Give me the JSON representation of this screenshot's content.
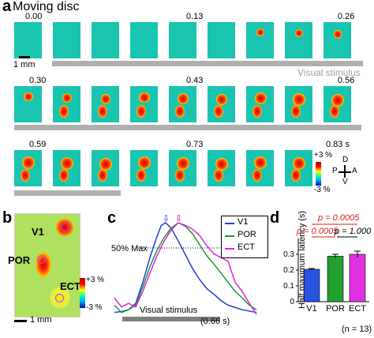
{
  "panel_a": {
    "letter": "a",
    "title": "Moving disc",
    "scale_label": "1 mm",
    "stimulus_label": "Visual stimulus",
    "row1_times": [
      "0.00",
      "0.13",
      "0.26"
    ],
    "row2_times": [
      "0.30",
      "0.43",
      "0.56"
    ],
    "row3_times": [
      "0.59",
      "0.73",
      "0.83 s"
    ],
    "colorbar": {
      "top": "+3 %",
      "bottom": "-3 %"
    },
    "compass": {
      "P": "P",
      "A": "A",
      "D": "D",
      "V": "V"
    }
  },
  "panel_b": {
    "letter": "b",
    "labels": {
      "v1": "V1",
      "por": "POR",
      "ect": "ECT"
    },
    "colorbar": {
      "top": "+3 %",
      "bottom": "-3 %"
    },
    "scale_label": "1 mm"
  },
  "panel_c": {
    "letter": "c",
    "threshold_label": "50% Max",
    "stimulus_label": "Visual stimulus",
    "stimulus_end": "(0.66 s)",
    "legend": [
      "V1",
      "POR",
      "ECT"
    ],
    "colors": {
      "v1": "#1f3fd6",
      "por": "#1a9a2a",
      "ect": "#e020e0"
    }
  },
  "panel_d": {
    "letter": "d",
    "ylabel": "Half maximum latency (s)",
    "n_label": "(n = 13)",
    "p_values": [
      "p = 0.0005",
      "p = 0.0005",
      "p = 1.000"
    ],
    "significance_color": "#d42020"
  },
  "chart_data": [
    {
      "type": "line",
      "panel": "c",
      "series": [
        {
          "name": "V1",
          "color": "#1f3fd6",
          "x": [
            0.0,
            0.05,
            0.1,
            0.15,
            0.2,
            0.25,
            0.3,
            0.33,
            0.36,
            0.4,
            0.45,
            0.5,
            0.55,
            0.6,
            0.65,
            0.7,
            0.75,
            0.8,
            0.9,
            1.0
          ],
          "y": [
            0.02,
            0.03,
            0.05,
            0.12,
            0.35,
            0.62,
            0.85,
            0.97,
            1.0,
            0.94,
            0.8,
            0.65,
            0.5,
            0.38,
            0.28,
            0.22,
            0.15,
            0.1,
            0.05,
            0.02
          ]
        },
        {
          "name": "POR",
          "color": "#1a9a2a",
          "x": [
            0.0,
            0.05,
            0.1,
            0.15,
            0.2,
            0.25,
            0.3,
            0.35,
            0.4,
            0.45,
            0.5,
            0.55,
            0.6,
            0.65,
            0.7,
            0.75,
            0.8,
            0.85,
            0.9,
            0.95,
            1.0
          ],
          "y": [
            0.1,
            0.02,
            0.05,
            0.1,
            0.3,
            0.52,
            0.7,
            0.84,
            0.94,
            1.0,
            0.96,
            0.88,
            0.76,
            0.64,
            0.55,
            0.45,
            0.35,
            0.25,
            0.18,
            0.1,
            0.05
          ]
        },
        {
          "name": "ECT",
          "color": "#e020e0",
          "x": [
            0.0,
            0.05,
            0.1,
            0.15,
            0.2,
            0.25,
            0.3,
            0.35,
            0.4,
            0.45,
            0.5,
            0.55,
            0.6,
            0.65,
            0.7,
            0.75,
            0.8,
            0.85,
            0.9,
            0.95,
            1.0
          ],
          "y": [
            0.18,
            0.08,
            0.12,
            0.08,
            0.25,
            0.45,
            0.64,
            0.8,
            0.92,
            1.0,
            0.97,
            0.93,
            0.86,
            0.75,
            0.66,
            0.62,
            0.58,
            0.35,
            0.25,
            0.12,
            0.0
          ]
        }
      ],
      "threshold": 0.5,
      "stimulus": {
        "start": 0.0,
        "end": 0.66
      }
    },
    {
      "type": "bar",
      "panel": "d",
      "categories": [
        "V1",
        "POR",
        "ECT"
      ],
      "values": [
        0.205,
        0.288,
        0.3
      ],
      "errors": [
        0.005,
        0.012,
        0.02
      ],
      "colors": [
        "#2a52e0",
        "#22a030",
        "#e030e0"
      ],
      "ylabel": "Half maximum latency (s)",
      "yticks": [
        "0",
        "0.1",
        "0.2",
        "0.3"
      ],
      "ylim": [
        0,
        0.4
      ]
    }
  ]
}
